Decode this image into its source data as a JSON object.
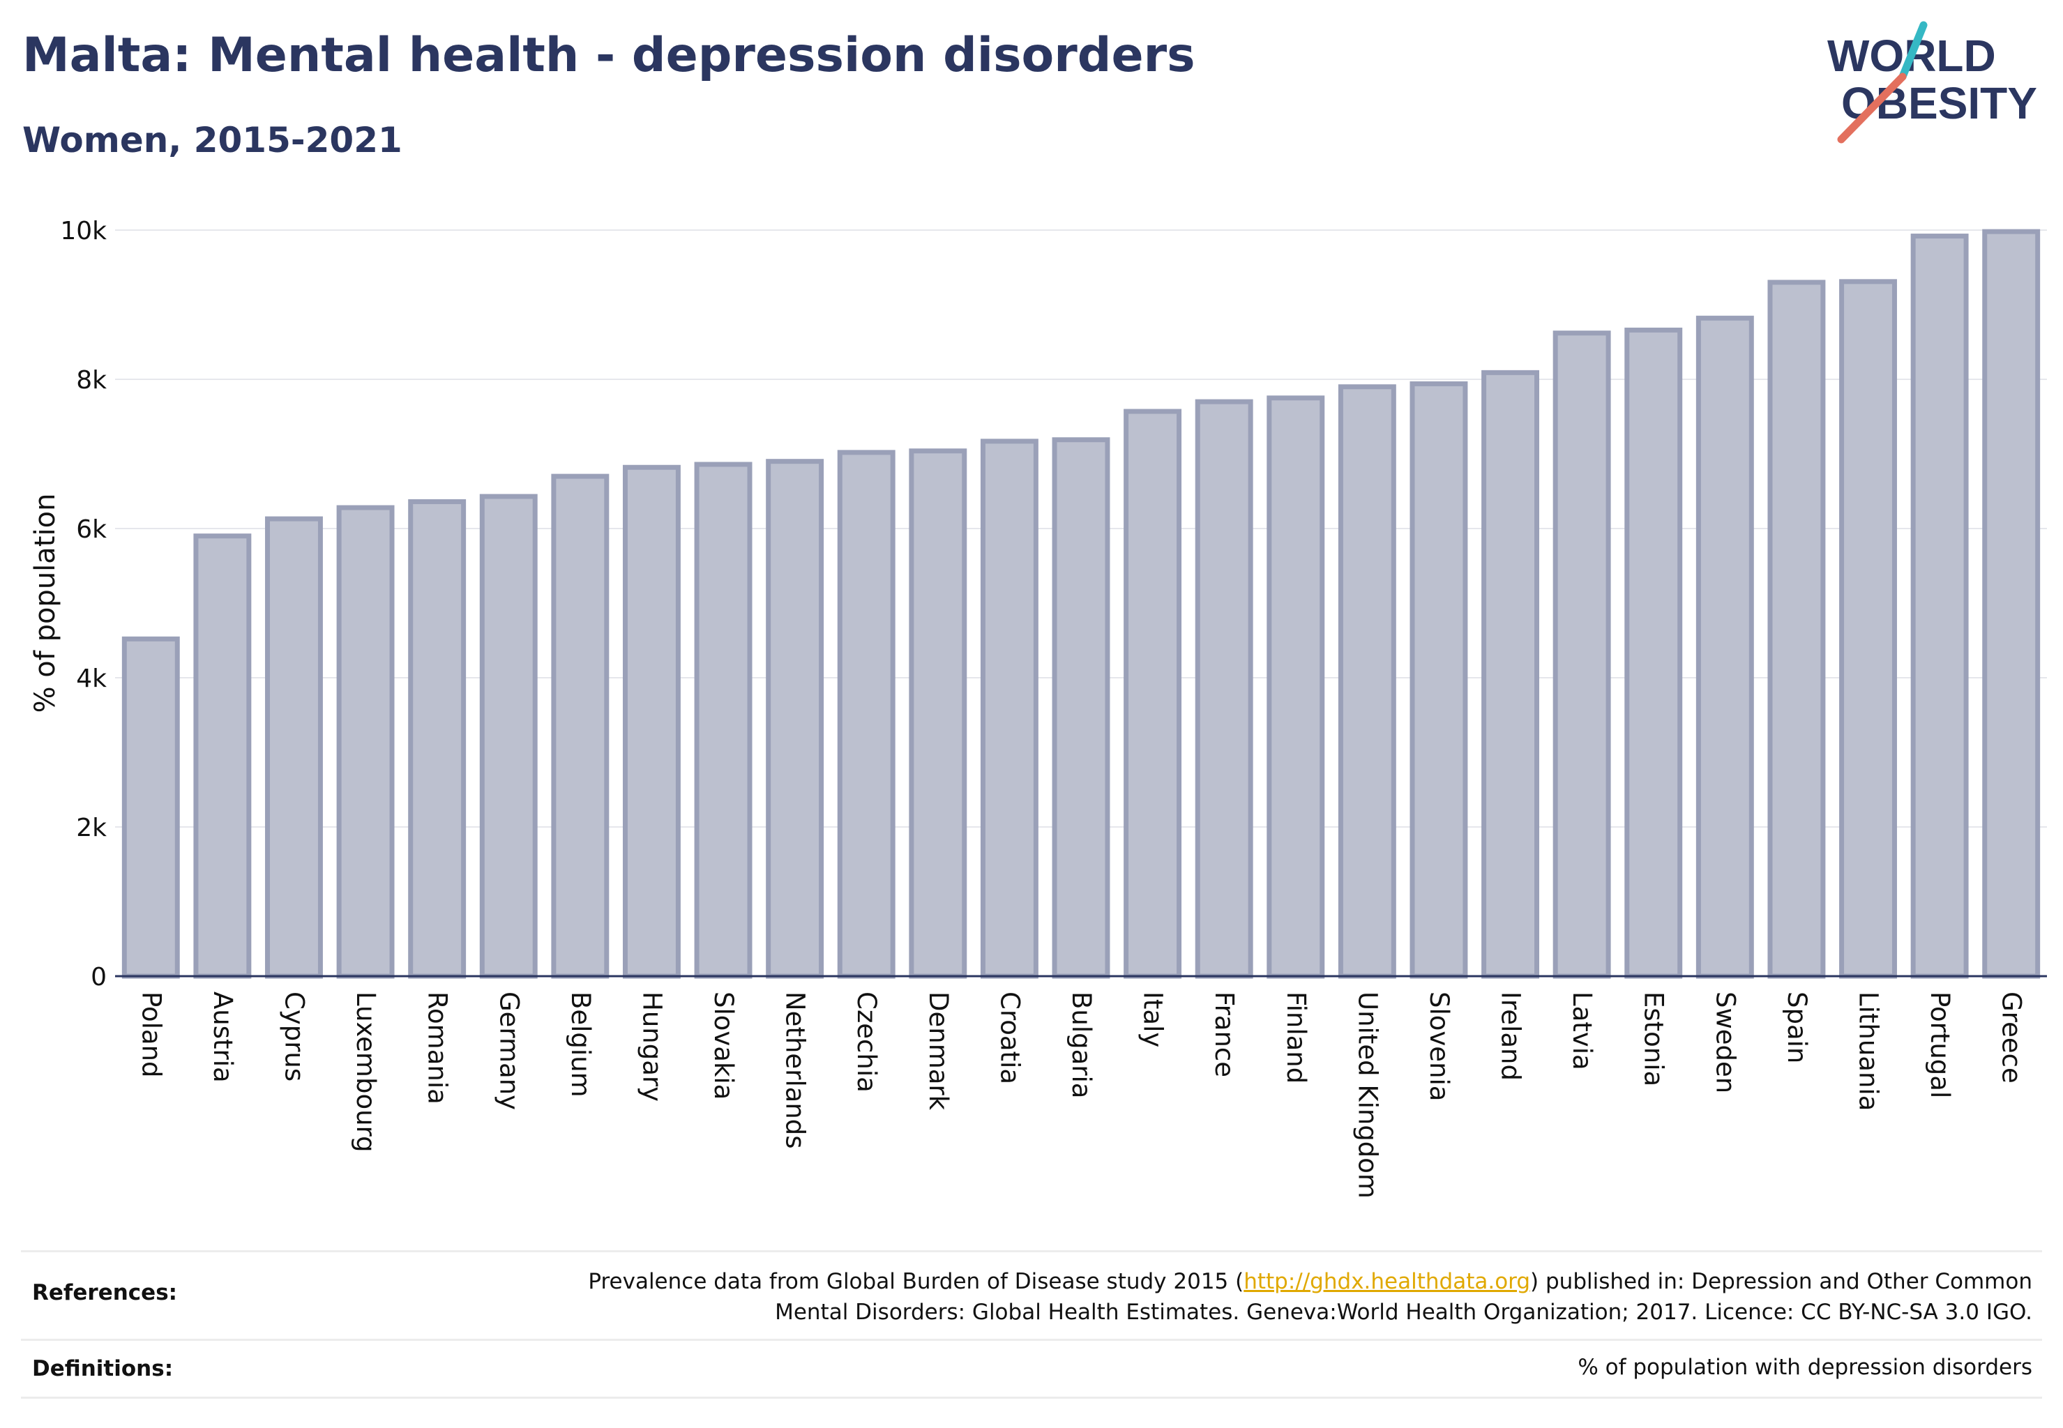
{
  "header": {
    "title": "Malta: Mental health - depression disorders",
    "subtitle": "Women, 2015-2021"
  },
  "logo": {
    "line1": "WORLD",
    "line2": "OBESITY",
    "slash_colors": [
      "#35b8c4",
      "#e3705e"
    ],
    "text_color": "#2b3660"
  },
  "chart_data": {
    "type": "bar",
    "ylabel": "% of population",
    "xlabel": "",
    "ylim": [
      0,
      10000
    ],
    "yticks": [
      0,
      2000,
      4000,
      6000,
      8000,
      10000
    ],
    "ytick_labels": [
      "0",
      "2k",
      "4k",
      "6k",
      "8k",
      "10k"
    ],
    "grid": true,
    "bar_color": "#bcc0cf",
    "bar_edge_color": "#9aa0b8",
    "categories": [
      "Poland",
      "Austria",
      "Cyprus",
      "Luxembourg",
      "Romania",
      "Germany",
      "Belgium",
      "Hungary",
      "Slovakia",
      "Netherlands",
      "Czechia",
      "Denmark",
      "Croatia",
      "Bulgaria",
      "Italy",
      "France",
      "Finland",
      "United Kingdom",
      "Slovenia",
      "Ireland",
      "Latvia",
      "Estonia",
      "Sweden",
      "Spain",
      "Lithuania",
      "Portugal",
      "Greece"
    ],
    "values": [
      4520,
      5900,
      6130,
      6280,
      6360,
      6430,
      6700,
      6820,
      6860,
      6900,
      7020,
      7040,
      7170,
      7190,
      7570,
      7700,
      7750,
      7900,
      7940,
      8090,
      8620,
      8660,
      8820,
      9300,
      9310,
      9920,
      9980
    ]
  },
  "footer": {
    "references_label": "References:",
    "references_pre": "Prevalence data from Global Burden of Disease study 2015 (",
    "references_link": "http://ghdx.healthdata.org",
    "references_post": ") published in: Depression and Other Common",
    "references_line2": "Mental Disorders: Global Health Estimates. Geneva:World Health Organization; 2017. Licence: CC BY-NC-SA 3.0 IGO.",
    "definitions_label": "Definitions:",
    "definitions_text": "% of population with depression disorders"
  }
}
